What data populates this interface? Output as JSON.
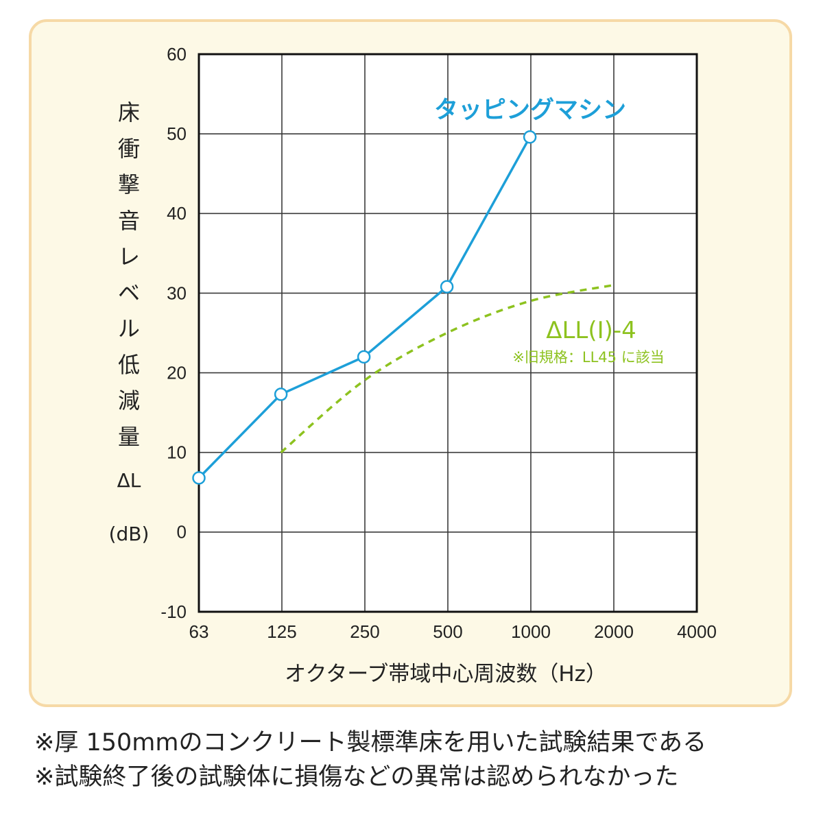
{
  "chart_data": {
    "type": "line",
    "x_scale": "log2",
    "categories": [
      "63",
      "125",
      "250",
      "500",
      "1000",
      "2000",
      "4000"
    ],
    "yticks": [
      "60",
      "50",
      "40",
      "30",
      "20",
      "10",
      "0",
      "-10"
    ],
    "ylim": [
      -10,
      60
    ],
    "grid": true,
    "ylabel": "床衝撃音レベル低減量",
    "ylabel_chars": [
      "床",
      "衝",
      "撃",
      "音",
      "レ",
      "ベ",
      "ル",
      "低",
      "減",
      "量"
    ],
    "ylabel_symbol": "ΔL",
    "ylabel_unit": "(dB)",
    "xlabel": "オクターブ帯域中心周波数（Hz）",
    "series": [
      {
        "name": "タッピングマシン",
        "color": "#1d9fd8",
        "style": "solid",
        "markers": true,
        "points": [
          {
            "x": 63,
            "y": 6.8
          },
          {
            "x": 125,
            "y": 17.3
          },
          {
            "x": 250,
            "y": 22.0
          },
          {
            "x": 500,
            "y": 30.8
          },
          {
            "x": 1000,
            "y": 49.6
          }
        ]
      },
      {
        "name": "ΔLL(Ⅰ)-4",
        "note": "※旧規格：LL45 に該当",
        "color": "#8dc21f",
        "style": "dashed",
        "markers": false,
        "points": [
          {
            "x": 125,
            "y": 10
          },
          {
            "x": 250,
            "y": 19
          },
          {
            "x": 500,
            "y": 25
          },
          {
            "x": 1000,
            "y": 29
          },
          {
            "x": 2000,
            "y": 31
          }
        ]
      }
    ]
  },
  "notes": [
    "※厚 150mmのコンクリート製標準床を用いた試験結果である",
    "※試験終了後の試験体に損傷などの異常は認められなかった"
  ],
  "colors": {
    "panel_bg": "#fdf9e6",
    "panel_border": "#f6d9a6",
    "grid": "#3a3a3a",
    "tapping": "#1d9fd8",
    "reference": "#8dc21f"
  }
}
